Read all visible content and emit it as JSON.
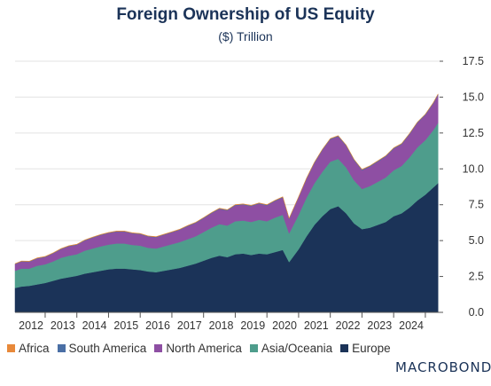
{
  "chart_data": {
    "type": "area",
    "stacked": true,
    "title": "Foreign Ownership of US Equity",
    "subtitle": "($) Trillion",
    "xlabel": "",
    "ylabel": "",
    "x_ticks": [
      "2012",
      "2013",
      "2014",
      "2015",
      "2016",
      "2017",
      "2018",
      "2019",
      "2020",
      "2021",
      "2022",
      "2023",
      "2024"
    ],
    "y_ticks": [
      "0.0",
      "2.5",
      "5.0",
      "7.5",
      "10.0",
      "12.5",
      "15.0",
      "17.5"
    ],
    "ylim": [
      0,
      17.5
    ],
    "xlim": [
      2011.55,
      2024.95
    ],
    "y_axis_side": "right",
    "grid": true,
    "legend_position": "bottom-left",
    "x": [
      2011.55,
      2011.75,
      2012.0,
      2012.25,
      2012.5,
      2012.75,
      2013.0,
      2013.25,
      2013.5,
      2013.75,
      2014.0,
      2014.25,
      2014.5,
      2014.75,
      2015.0,
      2015.25,
      2015.5,
      2015.75,
      2016.0,
      2016.25,
      2016.5,
      2016.75,
      2017.0,
      2017.25,
      2017.5,
      2017.75,
      2018.0,
      2018.25,
      2018.5,
      2018.75,
      2019.0,
      2019.25,
      2019.5,
      2019.75,
      2020.0,
      2020.2,
      2020.5,
      2020.75,
      2021.0,
      2021.25,
      2021.5,
      2021.75,
      2022.0,
      2022.25,
      2022.5,
      2022.75,
      2023.0,
      2023.25,
      2023.5,
      2023.75,
      2024.0,
      2024.25,
      2024.5,
      2024.75,
      2024.9
    ],
    "series": [
      {
        "name": "Africa",
        "color": "#e8893a",
        "values": [
          0.02,
          0.02,
          0.02,
          0.02,
          0.02,
          0.02,
          0.02,
          0.02,
          0.02,
          0.02,
          0.02,
          0.02,
          0.02,
          0.02,
          0.02,
          0.02,
          0.02,
          0.02,
          0.02,
          0.02,
          0.02,
          0.02,
          0.02,
          0.02,
          0.02,
          0.02,
          0.02,
          0.02,
          0.02,
          0.02,
          0.02,
          0.02,
          0.02,
          0.02,
          0.02,
          0.02,
          0.02,
          0.02,
          0.02,
          0.02,
          0.02,
          0.02,
          0.02,
          0.02,
          0.02,
          0.02,
          0.02,
          0.02,
          0.02,
          0.02,
          0.02,
          0.02,
          0.02,
          0.02,
          0.02
        ]
      },
      {
        "name": "South America",
        "color": "#4a6fa5",
        "values": [
          0.03,
          0.03,
          0.03,
          0.03,
          0.03,
          0.03,
          0.03,
          0.03,
          0.03,
          0.03,
          0.03,
          0.03,
          0.03,
          0.03,
          0.03,
          0.03,
          0.03,
          0.03,
          0.03,
          0.03,
          0.03,
          0.03,
          0.04,
          0.04,
          0.04,
          0.04,
          0.04,
          0.04,
          0.04,
          0.04,
          0.04,
          0.04,
          0.04,
          0.04,
          0.04,
          0.04,
          0.04,
          0.04,
          0.05,
          0.05,
          0.05,
          0.05,
          0.05,
          0.05,
          0.05,
          0.05,
          0.05,
          0.05,
          0.05,
          0.05,
          0.05,
          0.05,
          0.05,
          0.05,
          0.05
        ]
      },
      {
        "name": "North America",
        "color": "#8e4fa3",
        "values": [
          0.45,
          0.48,
          0.47,
          0.5,
          0.5,
          0.55,
          0.6,
          0.65,
          0.65,
          0.7,
          0.75,
          0.78,
          0.8,
          0.82,
          0.82,
          0.8,
          0.8,
          0.78,
          0.78,
          0.8,
          0.82,
          0.85,
          0.9,
          0.92,
          0.95,
          1.0,
          1.05,
          1.05,
          1.1,
          1.1,
          1.1,
          1.12,
          1.1,
          1.15,
          1.2,
          1.0,
          1.2,
          1.3,
          1.4,
          1.5,
          1.55,
          1.55,
          1.5,
          1.4,
          1.3,
          1.35,
          1.4,
          1.45,
          1.5,
          1.5,
          1.6,
          1.7,
          1.75,
          1.85,
          1.95
        ]
      },
      {
        "name": "Asia/Oceania",
        "color": "#4e9d8c",
        "values": [
          1.2,
          1.25,
          1.2,
          1.3,
          1.3,
          1.35,
          1.45,
          1.5,
          1.5,
          1.6,
          1.65,
          1.7,
          1.72,
          1.75,
          1.75,
          1.7,
          1.7,
          1.65,
          1.65,
          1.7,
          1.75,
          1.8,
          1.85,
          1.9,
          2.0,
          2.1,
          2.2,
          2.2,
          2.3,
          2.3,
          2.3,
          2.35,
          2.3,
          2.4,
          2.45,
          2.0,
          2.4,
          2.7,
          2.9,
          3.1,
          3.3,
          3.3,
          3.2,
          3.0,
          2.8,
          2.9,
          3.0,
          3.1,
          3.2,
          3.3,
          3.5,
          3.7,
          3.8,
          4.0,
          4.2
        ]
      },
      {
        "name": "Europe",
        "color": "#1b3358",
        "values": [
          1.7,
          1.8,
          1.85,
          1.95,
          2.05,
          2.2,
          2.35,
          2.45,
          2.55,
          2.7,
          2.8,
          2.9,
          3.0,
          3.05,
          3.05,
          3.0,
          2.95,
          2.85,
          2.8,
          2.9,
          3.0,
          3.1,
          3.25,
          3.4,
          3.6,
          3.8,
          3.95,
          3.85,
          4.05,
          4.1,
          4.0,
          4.1,
          4.05,
          4.2,
          4.35,
          3.5,
          4.4,
          5.3,
          6.1,
          6.7,
          7.2,
          7.4,
          6.9,
          6.2,
          5.8,
          5.9,
          6.1,
          6.3,
          6.7,
          6.9,
          7.3,
          7.8,
          8.2,
          8.7,
          9.0
        ]
      }
    ]
  },
  "brand": {
    "logo_text": "MACROBOND"
  }
}
